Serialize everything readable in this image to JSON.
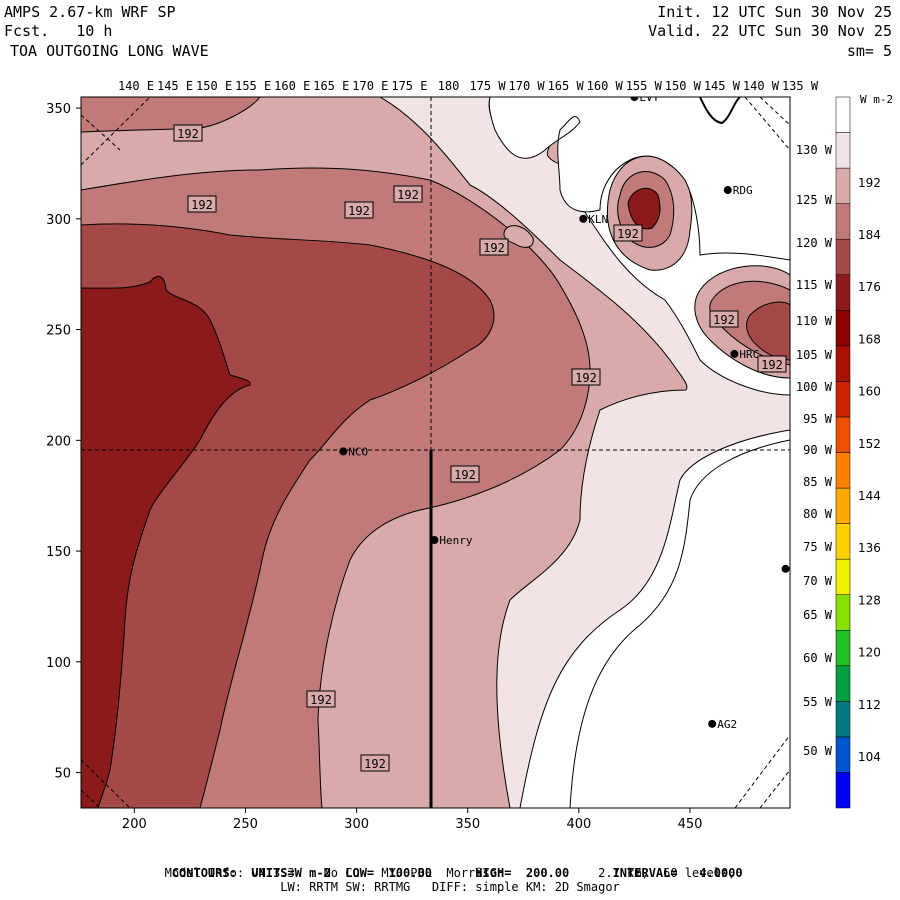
{
  "header": {
    "model": "AMPS 2.67-km WRF SP",
    "forecast": "Fcst.   10 h",
    "field": "TOA OUTGOING LONG WAVE",
    "init": "Init. 12 UTC Sun 30 Nov 25",
    "valid": "Valid. 22 UTC Sun 30 Nov 25",
    "smoothing": "sm= 5"
  },
  "axes": {
    "x_ticks": [
      200,
      250,
      300,
      350,
      400,
      450
    ],
    "y_ticks": [
      50,
      100,
      150,
      200,
      250,
      300,
      350
    ],
    "x_range": [
      176,
      495
    ],
    "y_range": [
      34,
      355
    ],
    "top_longitudes": [
      "140 E",
      "145 E",
      "150 E",
      "155 E",
      "160 E",
      "165 E",
      "170 E",
      "175 E",
      "180",
      "175 W",
      "170 W",
      "165 W",
      "160 W",
      "155 W",
      "150 W",
      "145 W",
      "140 W",
      "135 W"
    ],
    "right_latitudes": [
      "130 W",
      "125 W",
      "120 W",
      "115 W",
      "110 W",
      "105 W",
      "100 W",
      "95 W",
      "90 W",
      "85 W",
      "80 W",
      "75 W",
      "70 W",
      "65 W",
      "60 W",
      "55 W",
      "50 W"
    ]
  },
  "stations": [
    {
      "name": "LVT",
      "x": 425,
      "y": 355
    },
    {
      "name": "RDG",
      "x": 467,
      "y": 313
    },
    {
      "name": "KLN",
      "x": 402,
      "y": 300
    },
    {
      "name": "HRC",
      "x": 470,
      "y": 239
    },
    {
      "name": "NCO",
      "x": 294,
      "y": 195
    },
    {
      "name": "Henry",
      "x": 335,
      "y": 155
    },
    {
      "name": "AG2",
      "x": 460,
      "y": 72
    },
    {
      "name": "",
      "x": 493,
      "y": 142
    }
  ],
  "contour_labels": [
    "192",
    "192",
    "192",
    "192",
    "192",
    "192",
    "192",
    "192",
    "192",
    "192",
    "192",
    "192"
  ],
  "colorbar": {
    "unit": "W m-2",
    "levels": [
      104,
      112,
      120,
      128,
      136,
      144,
      152,
      160,
      168,
      176,
      184,
      192
    ],
    "colors": [
      "#0000ff",
      "#0055cc",
      "#007a80",
      "#00a040",
      "#22c020",
      "#88e000",
      "#f0f000",
      "#ffd000",
      "#ffaa00",
      "#ff7f00",
      "#ee5000",
      "#cc2200",
      "#aa1000",
      "#8b0000",
      "#8b1a1a",
      "#a54848",
      "#c07a7a",
      "#d9aaaa",
      "#f2e4e4",
      "#ffffff"
    ]
  },
  "footer": {
    "line1_label_contours": "CONTOURS:",
    "line1_units": "UNITS=W m-2",
    "line1_low": "LOW=  100.00",
    "line1_high": "HIGH=  200.00",
    "line1_interval": "INTERVAL=   4.0000",
    "line2": "Model Info: V4.3.3    No Cu   MYJ PBL  Morrison             2.7 km,  60 levels,",
    "line3": "LW: RRTM SW: RRTMG   DIFF: simple KM: 2D Smagor"
  }
}
